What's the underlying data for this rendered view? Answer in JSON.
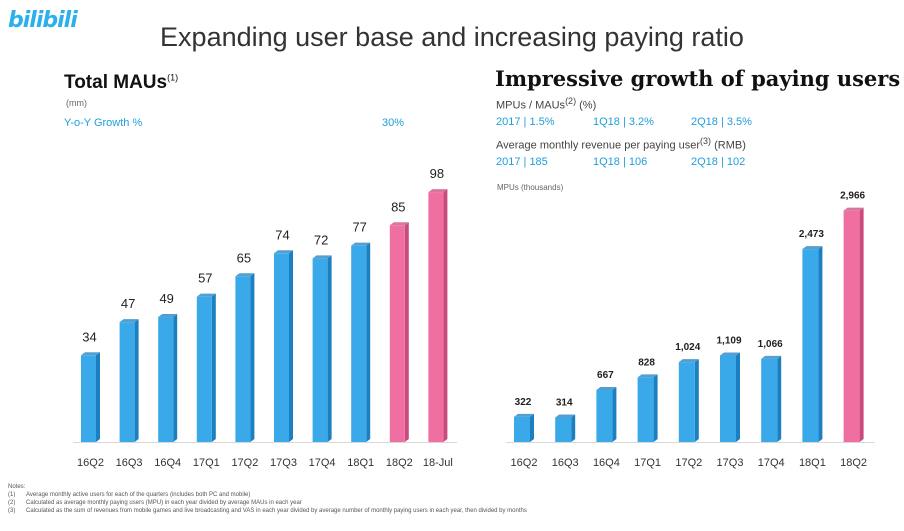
{
  "logo": "bilibili",
  "title": "Expanding user base and increasing paying ratio",
  "left": {
    "heading": "Total MAUs",
    "heading_sup": "(1)",
    "unit": "(mm)",
    "yoy_label": "Y-o-Y Growth %",
    "yoy_value": "30%"
  },
  "right": {
    "heading": "Impressive growth of paying users",
    "ratio_label": "MPUs / MAUs",
    "ratio_sup": "(2)",
    "ratio_unit": "(%)",
    "ratio_row": [
      "2017 | 1.5%",
      "1Q18 | 3.2%",
      "2Q18 | 3.5%"
    ],
    "arppu_label": "Average monthly revenue per paying user",
    "arppu_sup": "(3)",
    "arppu_unit": "(RMB)",
    "arppu_row": [
      "2017 | 185",
      "1Q18 | 106",
      "2Q18 | 102"
    ],
    "unit": "MPUs (thousands)"
  },
  "colors": {
    "blue": "#3aa9ea",
    "blue_dark": "#1c7fc0",
    "pink": "#f06fa2",
    "pink_dark": "#c94a7c",
    "accent": "#1e9fdb"
  },
  "chart_data": [
    {
      "type": "bar",
      "title": "Total MAUs",
      "ylabel": "(mm)",
      "categories": [
        "16Q2",
        "16Q3",
        "16Q4",
        "17Q1",
        "17Q2",
        "17Q3",
        "17Q4",
        "18Q1",
        "18Q2",
        "18-Jul"
      ],
      "values": [
        34,
        47,
        49,
        57,
        65,
        74,
        72,
        77,
        85,
        98
      ],
      "labels": [
        "34",
        "47",
        "49",
        "57",
        "65",
        "74",
        "72",
        "77",
        "85",
        "98"
      ],
      "highlight": [
        "18Q2",
        "18-Jul"
      ],
      "ylim": [
        0,
        100
      ]
    },
    {
      "type": "bar",
      "title": "MPUs",
      "ylabel": "MPUs (thousands)",
      "categories": [
        "16Q2",
        "16Q3",
        "16Q4",
        "17Q1",
        "17Q2",
        "17Q3",
        "17Q4",
        "18Q1",
        "18Q2"
      ],
      "values": [
        322,
        314,
        667,
        828,
        1024,
        1109,
        1066,
        2473,
        2966
      ],
      "labels": [
        "322",
        "314",
        "667",
        "828",
        "1,024",
        "1,109",
        "1,066",
        "2,473",
        "2,966"
      ],
      "highlight": [
        "18Q2"
      ],
      "ylim": [
        0,
        3000
      ]
    }
  ],
  "notes": {
    "heading": "Notes:",
    "items": [
      {
        "num": "(1)",
        "text": "Average monthly active users for each of the quarters (includes both PC and mobile)"
      },
      {
        "num": "(2)",
        "text": "Calculated as average monthly paying users (MPU) in each year divided by average MAUs in each year"
      },
      {
        "num": "(3)",
        "text": "Calculated as the sum of revenues from mobile games and live broadcasting and VAS in each year divided by average number of monthly paying users in each year, then divided by months"
      }
    ]
  }
}
